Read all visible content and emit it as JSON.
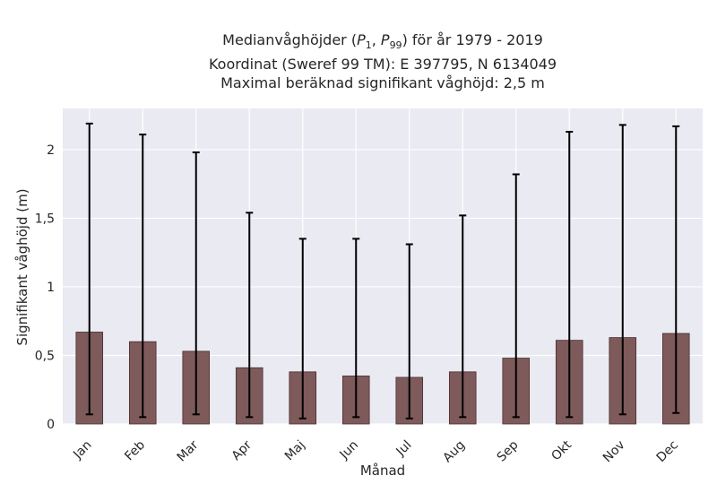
{
  "chart_data": {
    "type": "bar",
    "title": [
      "Medianvåghöjder (P1, P99) för år 1979 - 2019",
      "Koordinat (Sweref 99 TM): E 397795, N 6134049",
      "Maximal beräknad signifikant våghöjd: 2,5 m"
    ],
    "title_parts": {
      "line1_before": "Medianvåghöjder (",
      "p": "P",
      "sub1": "1",
      "sep": ", ",
      "sub2": "99",
      "line1_after": ") för år 1979 - 2019",
      "line2": "Koordinat (Sweref 99 TM): E 397795, N 6134049",
      "line3": "Maximal beräknad signifikant våghöjd: 2,5 m"
    },
    "xlabel": "Månad",
    "ylabel": "Signifikant våghöjd (m)",
    "categories": [
      "Jan",
      "Feb",
      "Mar",
      "Apr",
      "Maj",
      "Jun",
      "Jul",
      "Aug",
      "Sep",
      "Okt",
      "Nov",
      "Dec"
    ],
    "values": [
      0.67,
      0.6,
      0.53,
      0.41,
      0.38,
      0.35,
      0.34,
      0.38,
      0.48,
      0.61,
      0.63,
      0.66
    ],
    "p1": [
      0.07,
      0.05,
      0.07,
      0.05,
      0.04,
      0.05,
      0.04,
      0.05,
      0.05,
      0.05,
      0.07,
      0.08
    ],
    "p99": [
      2.19,
      2.11,
      1.98,
      1.54,
      1.35,
      1.35,
      1.31,
      1.52,
      1.82,
      2.13,
      2.18,
      2.17
    ],
    "ylim": [
      0,
      2.3
    ],
    "yticks": [
      0,
      0.5,
      1,
      1.5,
      2
    ],
    "ytick_labels": [
      "0",
      "0,5",
      "1",
      "1,5",
      "2"
    ],
    "grid": true,
    "colors": {
      "bar": "#7e5a5a",
      "bar_edge": "#4a2f2f",
      "errorbar": "#000000",
      "plot_bg": "#eaeaf2",
      "grid": "#ffffff"
    }
  }
}
